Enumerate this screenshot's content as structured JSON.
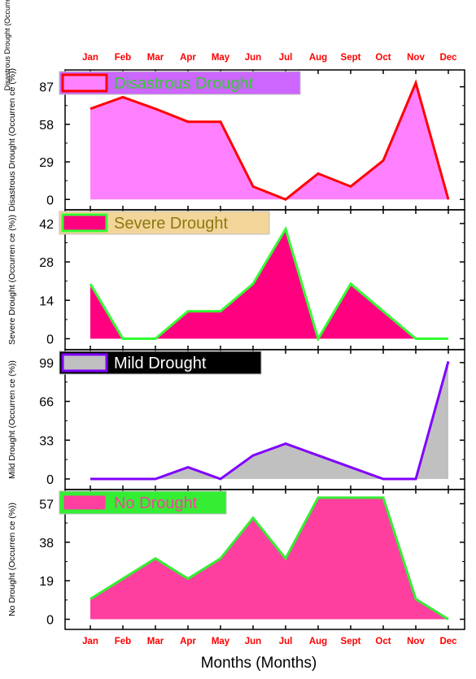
{
  "figure": {
    "top_ylabel": "Disastrous Drought (Occurren ce (%))",
    "xlabel": "Months (Months)"
  },
  "chart_data": {
    "type": "area",
    "categories": [
      "Jan",
      "Feb",
      "Mar",
      "Apr",
      "May",
      "Jun",
      "Jul",
      "Aug",
      "Sept",
      "Oct",
      "Nov",
      "Dec"
    ],
    "panels": [
      {
        "key": "disastrous",
        "name": "Disastrous Drought",
        "ylabel": "Disastrous Drought (Occurren ce (%))",
        "values": [
          70,
          79,
          70,
          60,
          60,
          10,
          0,
          20,
          10,
          30,
          90,
          0
        ],
        "yticks": [
          0,
          29,
          58,
          87
        ],
        "ylim": [
          -8,
          100
        ],
        "fill": "#ff80ff",
        "line": "#ff0000",
        "legend_bg": "#cc66ff",
        "legend_text": "#33cc33"
      },
      {
        "key": "severe",
        "name": "Severe Drought",
        "ylabel": "Severe Drought (Occurren ce (%))",
        "values": [
          20,
          0,
          0,
          10,
          10,
          20,
          40,
          0,
          20,
          10,
          0,
          0
        ],
        "yticks": [
          0,
          14,
          28,
          42
        ],
        "ylim": [
          -4,
          47
        ],
        "fill": "#ff0080",
        "line": "#33ff33",
        "legend_bg": "#f3d59a",
        "legend_text": "#8a7a10"
      },
      {
        "key": "mild",
        "name": "Mild Drought",
        "ylabel": "Mild Drought (Occurren ce (%))",
        "values": [
          0,
          0,
          0,
          10,
          0,
          20,
          30,
          20,
          10,
          0,
          0,
          100
        ],
        "yticks": [
          0,
          33,
          66,
          99
        ],
        "ylim": [
          -9,
          110
        ],
        "fill": "#c0c0c0",
        "line": "#8000ff",
        "legend_bg": "#000000",
        "legend_text": "#ffffff"
      },
      {
        "key": "none",
        "name": "No Drought",
        "ylabel": "No Drought (Occurren ce (%))",
        "values": [
          10,
          20,
          30,
          20,
          30,
          50,
          30,
          60,
          60,
          60,
          10,
          0
        ],
        "yticks": [
          0,
          19,
          38,
          57
        ],
        "ylim": [
          -5,
          64
        ],
        "fill": "#ff3fa0",
        "line": "#33ee33",
        "legend_bg": "#33ee33",
        "legend_text": "#ff3fa0"
      }
    ],
    "tick_label_color": "#ff0000",
    "grid": false
  }
}
